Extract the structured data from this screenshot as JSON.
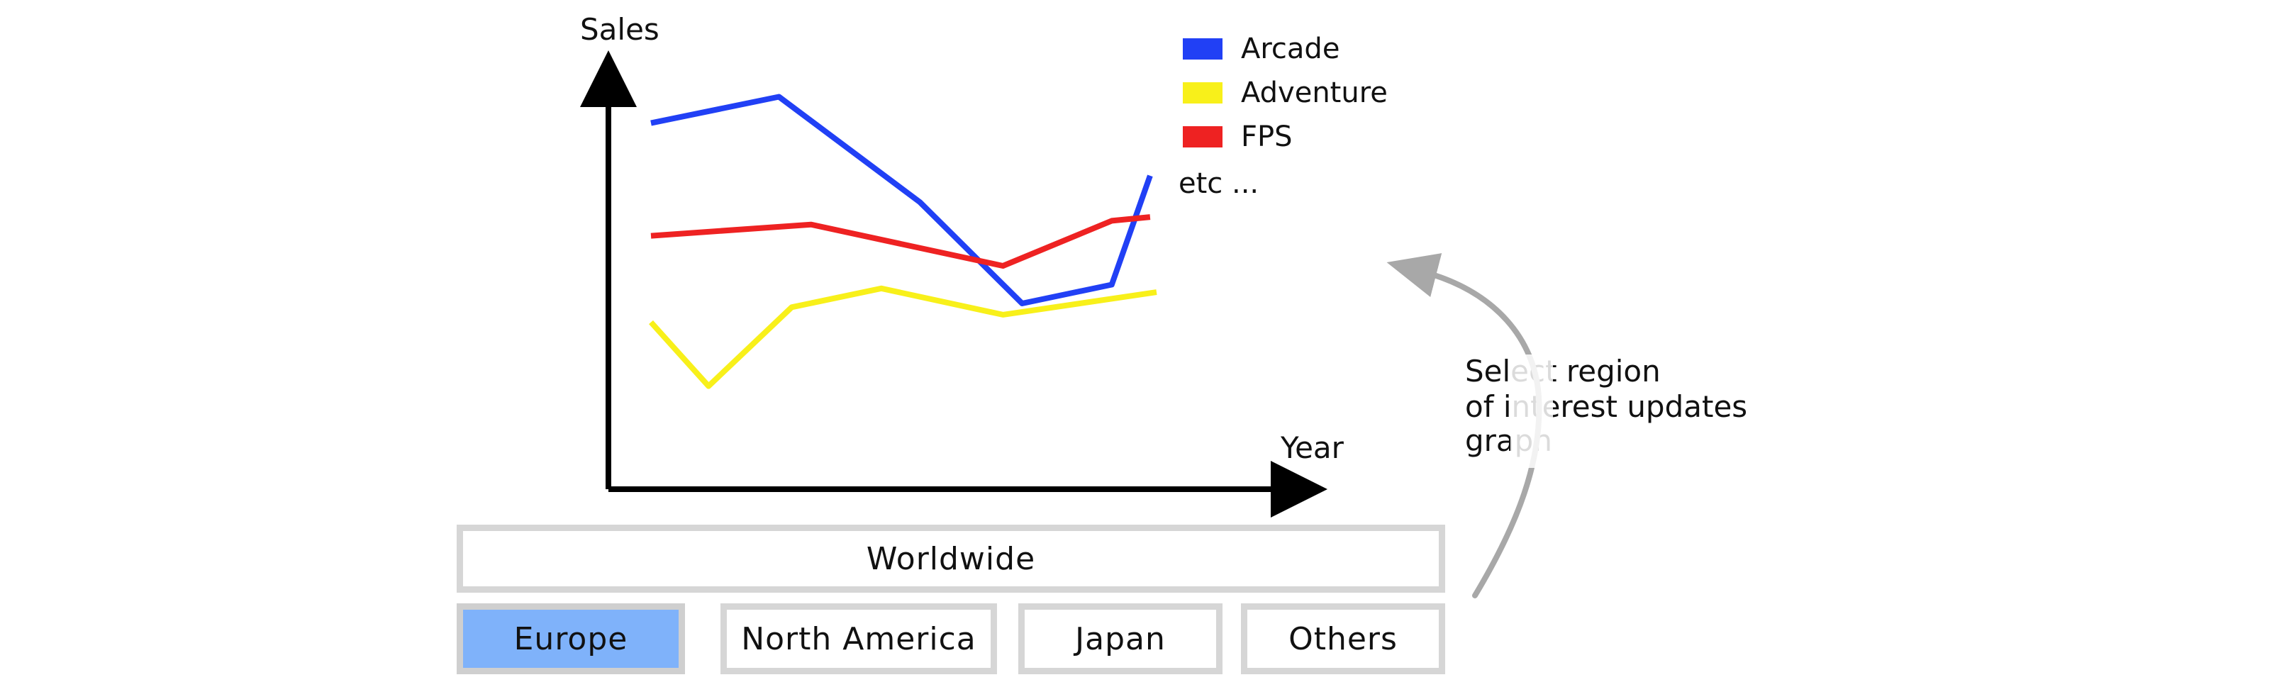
{
  "chart_data": {
    "type": "line",
    "xlabel": "Year",
    "ylabel": "Sales",
    "x": [
      0,
      1,
      2,
      3,
      4,
      5,
      6
    ],
    "ylim": [
      0,
      100
    ],
    "series": [
      {
        "name": "Arcade",
        "color": "#2140f5",
        "points": [
          [
            0,
            88
          ],
          [
            2,
            95
          ],
          [
            4.2,
            67
          ],
          [
            5.8,
            40
          ],
          [
            7.2,
            45
          ],
          [
            7.8,
            74
          ]
        ]
      },
      {
        "name": "Adventure",
        "color": "#f8f01a",
        "points": [
          [
            0,
            35
          ],
          [
            0.9,
            18
          ],
          [
            2.2,
            39
          ],
          [
            3.6,
            44
          ],
          [
            5.5,
            37
          ],
          [
            7.9,
            43
          ]
        ]
      },
      {
        "name": "FPS",
        "color": "#ee2222",
        "points": [
          [
            0,
            58
          ],
          [
            2.5,
            61
          ],
          [
            5.5,
            50
          ],
          [
            7.2,
            62
          ],
          [
            7.8,
            63
          ]
        ]
      }
    ],
    "legend_extra": "etc ..."
  },
  "annotation": {
    "line1": "Select region",
    "line2": "of interest updates",
    "line3": "graph"
  },
  "regions": {
    "worldwide": "Worldwide",
    "europe": "Europe",
    "north_america": "North America",
    "japan": "Japan",
    "others": "Others",
    "selected": "europe",
    "selected_color": "#7fb2fa"
  }
}
